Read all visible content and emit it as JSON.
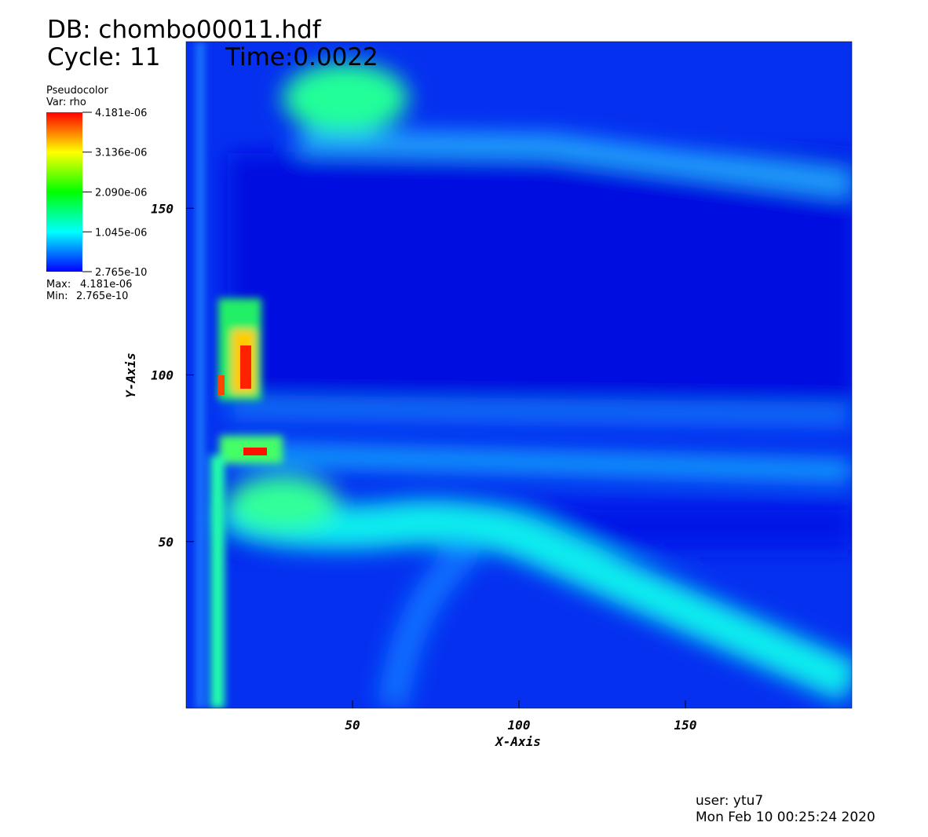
{
  "chart_data": {
    "type": "pseudocolor",
    "title": "DB: chombo00011.hdf",
    "cycle": "Cycle: 11",
    "time": "Time:0.0022",
    "plot_name": "Pseudocolor",
    "variable": "Var: rho",
    "x_label": "X-Axis",
    "y_label": "Y-Axis",
    "xlim": [
      0,
      200
    ],
    "ylim": [
      0,
      200
    ],
    "xticks": [
      50,
      100,
      150
    ],
    "yticks": [
      50,
      100,
      150
    ],
    "colormap": [
      "#0000ff",
      "#00ffff",
      "#00ff00",
      "#ffff00",
      "#ff0000"
    ],
    "colorbar_lim": [
      {
        "value": 2.765e-10,
        "label": "2.765e-10"
      },
      {
        "value": 4.181e-06,
        "label": "4.181e-06"
      }
    ],
    "colorbar_ticks": [
      {
        "value": 4.181e-06,
        "label": "4.181e-06"
      },
      {
        "value": 3.136e-06,
        "label": "3.136e-06"
      },
      {
        "value": 2.09e-06,
        "label": "2.090e-06"
      },
      {
        "value": 1.045e-06,
        "label": "1.045e-06"
      },
      {
        "value": 2.765e-10,
        "label": "2.765e-10"
      }
    ],
    "max_text": "Max:",
    "max": {
      "value": 4.181e-06,
      "label": "4.181e-06"
    },
    "min_text": "Min:",
    "min": {
      "value": 2.765e-10,
      "label": "2.765e-10"
    },
    "user": "user: ytu7",
    "date": "Mon Feb 10 00:25:24 2020"
  }
}
